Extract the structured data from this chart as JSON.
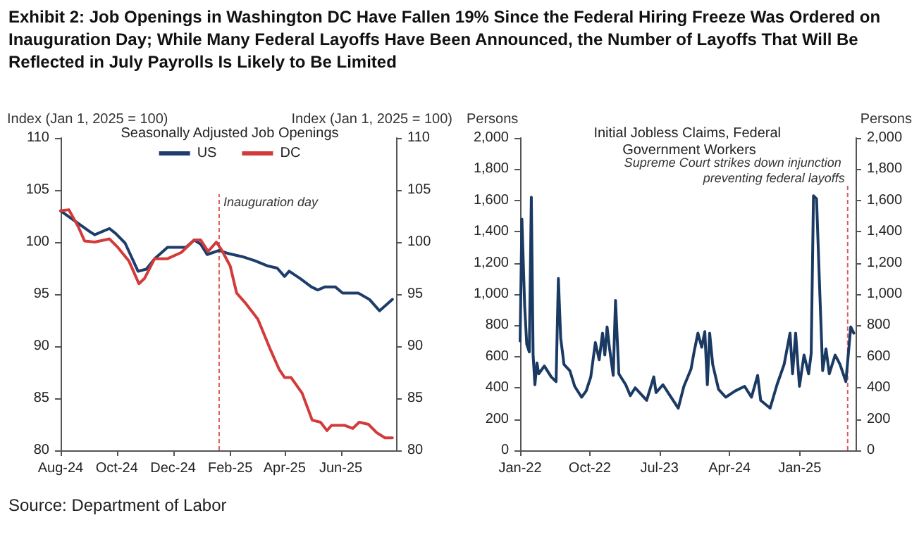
{
  "chart_data": [
    {
      "type": "line",
      "title": "Exhibit 2: Job Openings in Washington DC Have Fallen 19% Since the Federal Hiring Freeze Was Ordered on Inauguration Day; While Many Federal Layoffs Have Been Announced, the Number of Layoffs That Will Be Reflected in July Payrolls Is Likely to Be Limited",
      "subtitle": "Seasonally Adjusted Job Openings",
      "ylabel": "Index (Jan 1, 2025 = 100)",
      "y2label": "Index (Jan 1, 2025 = 100)",
      "series": [
        {
          "name": "US",
          "color": "#1f3d6b",
          "x": [
            "2024-08-01",
            "2024-08-20",
            "2024-08-31",
            "2024-09-07",
            "2024-09-23",
            "2024-09-30",
            "2024-10-10",
            "2024-10-24",
            "2024-11-02",
            "2024-11-11",
            "2024-11-25",
            "2024-12-15",
            "2024-12-24",
            "2024-12-31",
            "2025-01-07",
            "2025-01-20",
            "2025-01-30",
            "2025-02-14",
            "2025-02-28",
            "2025-03-14",
            "2025-03-24",
            "2025-04-01",
            "2025-04-06",
            "2025-04-18",
            "2025-04-30",
            "2025-05-07",
            "2025-05-15",
            "2025-05-26",
            "2025-06-03",
            "2025-06-20",
            "2025-07-02",
            "2025-07-13",
            "2025-07-27"
          ],
          "values": [
            103.0,
            101.8,
            101.1,
            100.7,
            101.3,
            100.8,
            99.9,
            97.2,
            97.4,
            98.4,
            99.5,
            99.5,
            100.2,
            99.8,
            98.8,
            99.2,
            98.9,
            98.6,
            98.2,
            97.7,
            97.5,
            96.7,
            97.2,
            96.5,
            95.7,
            95.4,
            95.7,
            95.7,
            95.1,
            95.1,
            94.5,
            93.4,
            94.5
          ]
        },
        {
          "name": "DC",
          "color": "#d33a3a",
          "x": [
            "2024-08-01",
            "2024-08-10",
            "2024-08-20",
            "2024-08-27",
            "2024-09-07",
            "2024-09-23",
            "2024-10-02",
            "2024-10-14",
            "2024-10-25",
            "2024-10-31",
            "2024-11-11",
            "2024-11-25",
            "2024-12-10",
            "2024-12-24",
            "2024-12-31",
            "2025-01-08",
            "2025-01-17",
            "2025-01-23",
            "2025-02-01",
            "2025-02-08",
            "2025-02-17",
            "2025-03-03",
            "2025-03-17",
            "2025-03-26",
            "2025-04-01",
            "2025-04-08",
            "2025-04-20",
            "2025-05-01",
            "2025-05-10",
            "2025-05-17",
            "2025-05-22",
            "2025-06-05",
            "2025-06-14",
            "2025-06-21",
            "2025-07-01",
            "2025-07-10",
            "2025-07-19",
            "2025-07-27"
          ],
          "values": [
            103.0,
            103.1,
            101.5,
            100.1,
            100.0,
            100.3,
            99.5,
            98.2,
            96.0,
            96.5,
            98.4,
            98.4,
            99.0,
            100.2,
            100.2,
            99.1,
            100.0,
            99.2,
            97.7,
            95.1,
            94.2,
            92.6,
            89.6,
            87.8,
            87.0,
            87.0,
            85.5,
            82.9,
            82.7,
            81.9,
            82.4,
            82.4,
            82.1,
            82.7,
            82.5,
            81.7,
            81.2,
            81.2
          ]
        }
      ],
      "xlim": [
        "2024-08-01",
        "2025-07-31"
      ],
      "xticks": [
        {
          "value": "2024-08-01",
          "label": "Aug-24"
        },
        {
          "value": "2024-10-01",
          "label": "Oct-24"
        },
        {
          "value": "2024-12-01",
          "label": "Dec-24"
        },
        {
          "value": "2025-02-01",
          "label": "Feb-25"
        },
        {
          "value": "2025-04-01",
          "label": "Apr-25"
        },
        {
          "value": "2025-06-01",
          "label": "Jun-25"
        }
      ],
      "ylim": [
        80,
        110
      ],
      "yticks": [
        80,
        85,
        90,
        95,
        100,
        105,
        110
      ],
      "y2lim": [
        80,
        110
      ],
      "y2ticks": [
        80,
        85,
        90,
        95,
        100,
        105,
        110
      ],
      "ref_lines": [
        {
          "axis": "x",
          "value": "2025-01-20",
          "label": "Inauguration day",
          "color": "#e05a5a",
          "line_style": "dashed"
        }
      ],
      "legend": "top",
      "marker": "none",
      "line_style": "solid",
      "grid": false,
      "annotations": [
        "Source: Department of Labor"
      ]
    },
    {
      "type": "line",
      "title": "Initial Jobless Claims, Federal Government Workers",
      "ylabel": "Persons",
      "y2label": "Persons",
      "series": [
        {
          "color": "#1b3a63",
          "x": [
            "2022-01-01",
            "2022-01-08",
            "2022-01-19",
            "2022-01-27",
            "2022-02-06",
            "2022-02-14",
            "2022-02-21",
            "2022-02-28",
            "2022-03-08",
            "2022-03-15",
            "2022-04-06",
            "2022-05-03",
            "2022-05-22",
            "2022-05-31",
            "2022-06-09",
            "2022-06-22",
            "2022-07-15",
            "2022-08-03",
            "2022-08-30",
            "2022-09-17",
            "2022-10-05",
            "2022-10-23",
            "2022-11-07",
            "2022-11-20",
            "2022-11-29",
            "2022-12-08",
            "2022-12-17",
            "2023-01-01",
            "2023-01-10",
            "2023-01-23",
            "2023-02-19",
            "2023-03-09",
            "2023-03-28",
            "2023-05-12",
            "2023-06-09",
            "2023-06-18",
            "2023-07-15",
            "2023-08-12",
            "2023-09-13",
            "2023-10-05",
            "2023-11-02",
            "2023-11-14",
            "2023-11-29",
            "2023-12-14",
            "2023-12-26",
            "2024-01-05",
            "2024-01-14",
            "2024-01-26",
            "2024-02-18",
            "2024-03-17",
            "2024-04-23",
            "2024-05-30",
            "2024-06-26",
            "2024-07-20",
            "2024-08-01",
            "2024-09-07",
            "2024-10-04",
            "2024-11-01",
            "2024-11-24",
            "2024-12-04",
            "2024-12-16",
            "2024-12-31",
            "2025-01-18",
            "2025-02-05",
            "2025-02-15",
            "2025-02-24",
            "2025-03-08",
            "2025-03-21",
            "2025-04-01",
            "2025-04-14",
            "2025-04-27",
            "2025-05-20",
            "2025-06-08",
            "2025-07-01",
            "2025-07-20",
            "2025-08-01"
          ],
          "values": [
            700,
            1480,
            920,
            680,
            630,
            1620,
            610,
            420,
            560,
            490,
            540,
            470,
            440,
            1100,
            720,
            550,
            510,
            410,
            340,
            380,
            470,
            690,
            580,
            750,
            610,
            790,
            660,
            480,
            960,
            490,
            420,
            350,
            400,
            320,
            470,
            370,
            420,
            350,
            270,
            410,
            520,
            630,
            750,
            660,
            760,
            420,
            750,
            550,
            390,
            340,
            380,
            410,
            340,
            480,
            320,
            270,
            420,
            550,
            750,
            490,
            750,
            410,
            610,
            490,
            620,
            1630,
            1610,
            1000,
            510,
            650,
            490,
            610,
            550,
            440,
            790,
            750
          ]
        }
      ],
      "xlim": [
        "2022-01-01",
        "2025-08-08"
      ],
      "xticks": [
        {
          "value": "2022-01-01",
          "label": "Jan-22"
        },
        {
          "value": "2022-10-01",
          "label": "Oct-22"
        },
        {
          "value": "2023-07-01",
          "label": "Jul-23"
        },
        {
          "value": "2024-04-01",
          "label": "Apr-24"
        },
        {
          "value": "2025-01-01",
          "label": "Jan-25"
        }
      ],
      "ylim": [
        0,
        2000
      ],
      "yticks": [
        0,
        {
          "value": 200,
          "label": "200"
        },
        400,
        600,
        800,
        {
          "value": 1000,
          "label": "1,000"
        },
        {
          "value": 1200,
          "label": "1,200"
        },
        {
          "value": 1400,
          "label": "1,400"
        },
        {
          "value": 1600,
          "label": "1,600"
        },
        {
          "value": 1800,
          "label": "1,800"
        },
        {
          "value": 2000,
          "label": "2,000"
        }
      ],
      "y2lim": [
        0,
        2000
      ],
      "y2ticks": [
        0,
        200,
        400,
        600,
        800,
        {
          "value": 1000,
          "label": "1,000"
        },
        {
          "value": 1200,
          "label": "1,200"
        },
        {
          "value": 1400,
          "label": "1,400"
        },
        {
          "value": 1600,
          "label": "1,600"
        },
        {
          "value": 1800,
          "label": "1,800"
        },
        {
          "value": 2000,
          "label": "2,000"
        }
      ],
      "ref_lines": [
        {
          "axis": "x",
          "value": "2025-07-08",
          "label": "Supreme Court strikes down injunction preventing federal layoffs",
          "color": "#e05a5a",
          "line_style": "dashed"
        }
      ],
      "marker": "none",
      "line_style": "solid",
      "grid": false
    }
  ]
}
